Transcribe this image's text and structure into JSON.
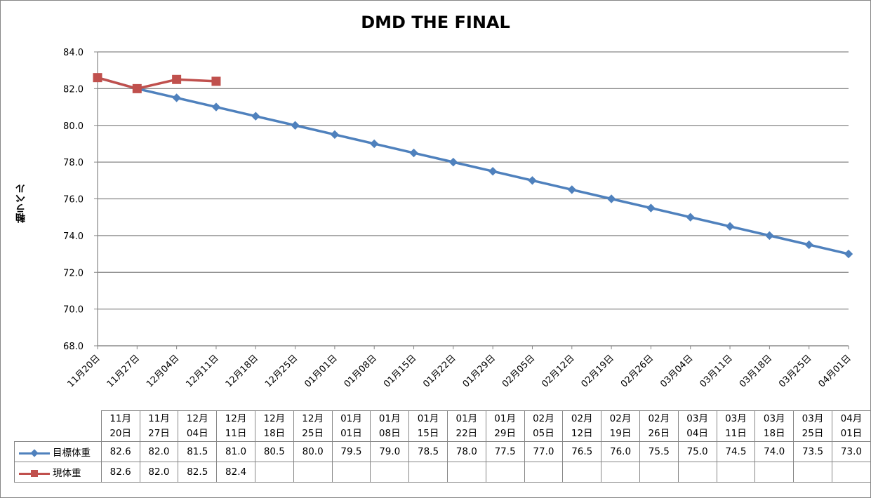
{
  "chart_data": {
    "type": "line",
    "title": "DMD THE FINAL",
    "xlabel": "",
    "ylabel": "軸ラベル",
    "ylim": [
      68.0,
      84.0
    ],
    "yticks": [
      "68.0",
      "70.0",
      "72.0",
      "74.0",
      "76.0",
      "78.0",
      "80.0",
      "82.0",
      "84.0"
    ],
    "grid": true,
    "legend": "table",
    "categories": [
      "11月20日",
      "11月27日",
      "12月04日",
      "12月11日",
      "12月18日",
      "12月25日",
      "01月01日",
      "01月08日",
      "01月15日",
      "01月22日",
      "01月29日",
      "02月05日",
      "02月12日",
      "02月19日",
      "02月26日",
      "03月04日",
      "03月11日",
      "03月18日",
      "03月25日",
      "04月01日"
    ],
    "table_headers": [
      [
        "11月",
        "20日"
      ],
      [
        "11月",
        "27日"
      ],
      [
        "12月",
        "04日"
      ],
      [
        "12月",
        "11日"
      ],
      [
        "12月",
        "18日"
      ],
      [
        "12月",
        "25日"
      ],
      [
        "01月",
        "01日"
      ],
      [
        "01月",
        "08日"
      ],
      [
        "01月",
        "15日"
      ],
      [
        "01月",
        "22日"
      ],
      [
        "01月",
        "29日"
      ],
      [
        "02月",
        "05日"
      ],
      [
        "02月",
        "12日"
      ],
      [
        "02月",
        "19日"
      ],
      [
        "02月",
        "26日"
      ],
      [
        "03月",
        "04日"
      ],
      [
        "03月",
        "11日"
      ],
      [
        "03月",
        "18日"
      ],
      [
        "03月",
        "25日"
      ],
      [
        "04月",
        "01日"
      ]
    ],
    "series": [
      {
        "name": "目標体重",
        "color": "#4f81bd",
        "marker": "diamond",
        "values": [
          82.6,
          82.0,
          81.5,
          81.0,
          80.5,
          80.0,
          79.5,
          79.0,
          78.5,
          78.0,
          77.5,
          77.0,
          76.5,
          76.0,
          75.5,
          75.0,
          74.5,
          74.0,
          73.5,
          73.0
        ],
        "labels": [
          "82.6",
          "82.0",
          "81.5",
          "81.0",
          "80.5",
          "80.0",
          "79.5",
          "79.0",
          "78.5",
          "78.0",
          "77.5",
          "77.0",
          "76.5",
          "76.0",
          "75.5",
          "75.0",
          "74.5",
          "74.0",
          "73.5",
          "73.0"
        ]
      },
      {
        "name": "現体重",
        "color": "#c0504d",
        "marker": "square",
        "values": [
          82.6,
          82.0,
          82.5,
          82.4,
          null,
          null,
          null,
          null,
          null,
          null,
          null,
          null,
          null,
          null,
          null,
          null,
          null,
          null,
          null,
          null
        ],
        "labels": [
          "82.6",
          "82.0",
          "82.5",
          "82.4",
          "",
          "",
          "",
          "",
          "",
          "",
          "",
          "",
          "",
          "",
          "",
          "",
          "",
          "",
          "",
          ""
        ]
      }
    ]
  }
}
